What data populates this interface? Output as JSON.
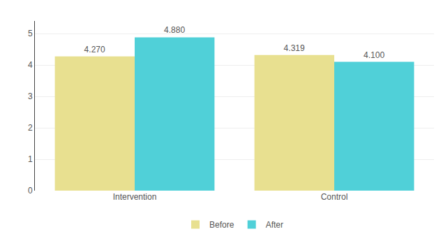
{
  "chart_data": {
    "type": "bar",
    "categories": [
      "Intervention",
      "Control"
    ],
    "series": [
      {
        "name": "Before",
        "color": "#e8e090",
        "values": [
          4.27,
          4.319
        ],
        "value_labels": [
          "4.270",
          "4.319"
        ]
      },
      {
        "name": "After",
        "color": "#50d0d8",
        "values": [
          4.88,
          4.1
        ],
        "value_labels": [
          "4.880",
          "4.100"
        ]
      }
    ],
    "ylim": [
      0,
      5.4
    ],
    "yticks": [
      0,
      1,
      2,
      3,
      4,
      5
    ],
    "grid": true,
    "legend": "bottom",
    "data_labels": true
  }
}
